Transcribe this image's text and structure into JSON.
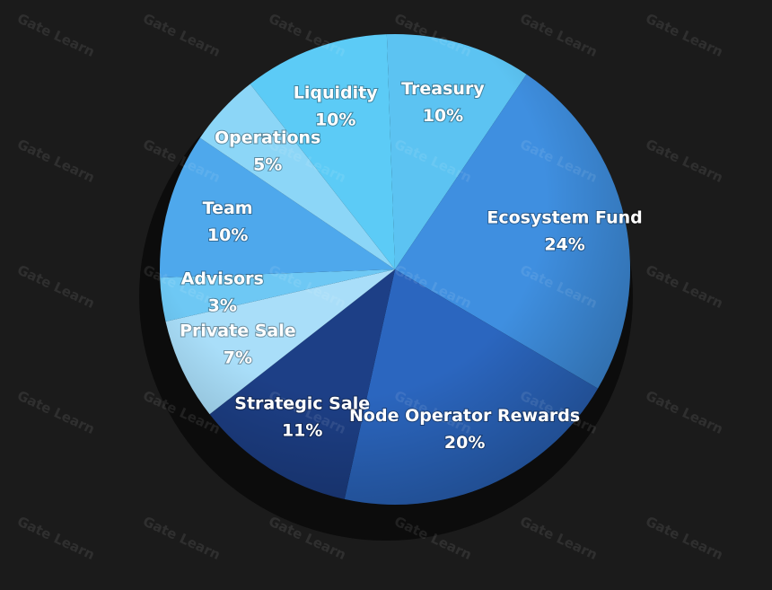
{
  "chart_data": {
    "type": "pie",
    "categories": [
      "Treasury",
      "Ecosystem Fund",
      "Node Operator Rewards",
      "Strategic Sale",
      "Private Sale",
      "Advisors",
      "Team",
      "Operations",
      "Liquidity"
    ],
    "values": [
      10,
      24,
      20,
      11,
      7,
      3,
      10,
      5,
      10
    ],
    "value_labels": [
      "10%",
      "24%",
      "20%",
      "11%",
      "7%",
      "3%",
      "10%",
      "5%",
      "10%"
    ],
    "colors": [
      "#5cc3f2",
      "#3f8fe0",
      "#2b66bf",
      "#1d3f86",
      "#a9def9",
      "#6ec8f4",
      "#4ea8ec",
      "#8cd6f7",
      "#5ccbf6"
    ],
    "watermark": "Gate Learn"
  }
}
